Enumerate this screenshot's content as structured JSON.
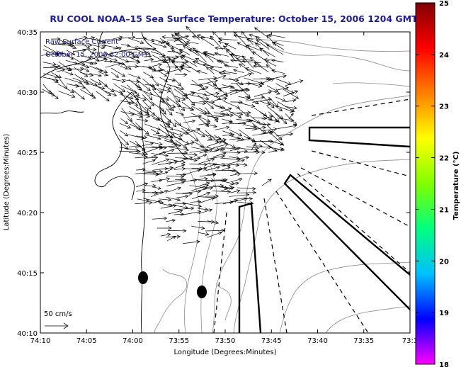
{
  "title": "RU COOL  NOAA–15  Sea Surface Temperature:  October 15, 2006 1204 GMT",
  "annotation": {
    "line1": "Raw Surface Current",
    "line2": "October 15, 2006 12:00 GMT"
  },
  "scale": {
    "label": "50 cm/s"
  },
  "axes": {
    "xlabel": "Longitude (Degrees:Minutes)",
    "ylabel": "Latitude (Degrees:Minutes)",
    "xticks": [
      "74:10",
      "74:05",
      "74:00",
      "73:55",
      "73:50",
      "73:45",
      "73:40",
      "73:35",
      "73:3"
    ],
    "yticks": [
      "40:35",
      "40:30",
      "40:25",
      "40:20",
      "40:15",
      "40:10"
    ]
  },
  "colorbar": {
    "label": "Temperature (°C)",
    "ticks": [
      "25",
      "24",
      "23",
      "22",
      "21",
      "20",
      "19",
      "18"
    ],
    "range": [
      18,
      25
    ],
    "colors": [
      "#ff00ff",
      "#0000ff",
      "#00c0ff",
      "#00ff80",
      "#80ff00",
      "#ffff00",
      "#ff8000",
      "#ff0000",
      "#800000"
    ]
  },
  "markers": [
    {
      "name": "buoy-marker",
      "lon": "73:59.4",
      "lat": "40:14.6"
    },
    {
      "name": "buoy-marker",
      "lon": "73:53.9",
      "lat": "40:13.5"
    }
  ]
}
